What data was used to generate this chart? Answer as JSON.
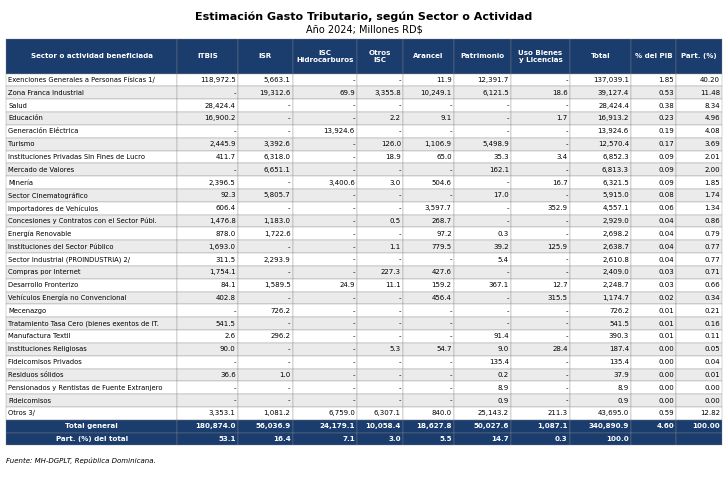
{
  "title": "Estimación Gasto Tributario, según Sector o Actividad",
  "subtitle": "Año 2024; Millones RD$",
  "headers": [
    "Sector o actividad beneficiada",
    "ITBIS",
    "ISR",
    "ISC\nHidrocarburos",
    "Otros\nISC",
    "Arancel",
    "Patrimonio",
    "Uso Bienes\ny Licencias",
    "Total",
    "% del PIB",
    "Part. (%)"
  ],
  "rows": [
    [
      "Exenciones Generales a Personas Físicas 1/",
      "118,972.5",
      "5,663.1",
      "-",
      "-",
      "11.9",
      "12,391.7",
      "-",
      "137,039.1",
      "1.85",
      "40.20"
    ],
    [
      "Zona Franca Industrial",
      "-",
      "19,312.6",
      "69.9",
      "3,355.8",
      "10,249.1",
      "6,121.5",
      "18.6",
      "39,127.4",
      "0.53",
      "11.48"
    ],
    [
      "Salud",
      "28,424.4",
      "-",
      "-",
      "-",
      "-",
      "-",
      "-",
      "28,424.4",
      "0.38",
      "8.34"
    ],
    [
      "Educación",
      "16,900.2",
      "-",
      "-",
      "2.2",
      "9.1",
      "-",
      "1.7",
      "16,913.2",
      "0.23",
      "4.96"
    ],
    [
      "Generación Eléctrica",
      "-",
      "-",
      "13,924.6",
      "-",
      "-",
      "-",
      "-",
      "13,924.6",
      "0.19",
      "4.08"
    ],
    [
      "Turismo",
      "2,445.9",
      "3,392.6",
      "-",
      "126.0",
      "1,106.9",
      "5,498.9",
      "-",
      "12,570.4",
      "0.17",
      "3.69"
    ],
    [
      "Instituciones Privadas Sin Fines de Lucro",
      "411.7",
      "6,318.0",
      "-",
      "18.9",
      "65.0",
      "35.3",
      "3.4",
      "6,852.3",
      "0.09",
      "2.01"
    ],
    [
      "Mercado de Valores",
      "-",
      "6,651.1",
      "-",
      "-",
      "-",
      "162.1",
      "-",
      "6,813.3",
      "0.09",
      "2.00"
    ],
    [
      "Minería",
      "2,396.5",
      "-",
      "3,400.6",
      "3.0",
      "504.6",
      "-",
      "16.7",
      "6,321.5",
      "0.09",
      "1.85"
    ],
    [
      "Sector Cinematográfico",
      "92.3",
      "5,805.7",
      "-",
      "-",
      "-",
      "17.0",
      "-",
      "5,915.0",
      "0.08",
      "1.74"
    ],
    [
      "Importadores de Vehículos",
      "606.4",
      "-",
      "-",
      "-",
      "3,597.7",
      "-",
      "352.9",
      "4,557.1",
      "0.06",
      "1.34"
    ],
    [
      "Concesiones y Contratos con el Sector Públ.",
      "1,476.8",
      "1,183.0",
      "-",
      "0.5",
      "268.7",
      "-",
      "-",
      "2,929.0",
      "0.04",
      "0.86"
    ],
    [
      "Energía Renovable",
      "878.0",
      "1,722.6",
      "-",
      "-",
      "97.2",
      "0.3",
      "-",
      "2,698.2",
      "0.04",
      "0.79"
    ],
    [
      "Instituciones del Sector Público",
      "1,693.0",
      "-",
      "-",
      "1.1",
      "779.5",
      "39.2",
      "125.9",
      "2,638.7",
      "0.04",
      "0.77"
    ],
    [
      "Sector Industrial (PROINDUSTRIA) 2/",
      "311.5",
      "2,293.9",
      "-",
      "-",
      "-",
      "5.4",
      "-",
      "2,610.8",
      "0.04",
      "0.77"
    ],
    [
      "Compras por Internet",
      "1,754.1",
      "-",
      "-",
      "227.3",
      "427.6",
      "-",
      "-",
      "2,409.0",
      "0.03",
      "0.71"
    ],
    [
      "Desarrollo Fronterizo",
      "84.1",
      "1,589.5",
      "24.9",
      "11.1",
      "159.2",
      "367.1",
      "12.7",
      "2,248.7",
      "0.03",
      "0.66"
    ],
    [
      "Vehículos Energía no Convencional",
      "402.8",
      "-",
      "-",
      "-",
      "456.4",
      "-",
      "315.5",
      "1,174.7",
      "0.02",
      "0.34"
    ],
    [
      "Mecenazgo",
      "-",
      "726.2",
      "-",
      "-",
      "-",
      "-",
      "-",
      "726.2",
      "0.01",
      "0.21"
    ],
    [
      "Tratamiento Tasa Cero (bienes exentos de IT.",
      "541.5",
      "-",
      "-",
      "-",
      "-",
      "-",
      "-",
      "541.5",
      "0.01",
      "0.16"
    ],
    [
      "Manufactura Textil",
      "2.6",
      "296.2",
      "-",
      "-",
      "-",
      "91.4",
      "-",
      "390.3",
      "0.01",
      "0.11"
    ],
    [
      "Instituciones Religiosas",
      "90.0",
      "-",
      "-",
      "5.3",
      "54.7",
      "9.0",
      "28.4",
      "187.4",
      "0.00",
      "0.05"
    ],
    [
      "Fideicomisos Privados",
      "-",
      "-",
      "-",
      "-",
      "-",
      "135.4",
      "-",
      "135.4",
      "0.00",
      "0.04"
    ],
    [
      "Residuos sólidos",
      "36.6",
      "1.0",
      "-",
      "-",
      "-",
      "0.2",
      "-",
      "37.9",
      "0.00",
      "0.01"
    ],
    [
      "Pensionados y Rentistas de Fuente Extranjero",
      "-",
      "-",
      "-",
      "-",
      "-",
      "8.9",
      "-",
      "8.9",
      "0.00",
      "0.00"
    ],
    [
      "Fideicomisos",
      "-",
      "-",
      "-",
      "-",
      "-",
      "0.9",
      "-",
      "0.9",
      "0.00",
      "0.00"
    ],
    [
      "Otros 3/",
      "3,353.1",
      "1,081.2",
      "6,759.0",
      "6,307.1",
      "840.0",
      "25,143.2",
      "211.3",
      "43,695.0",
      "0.59",
      "12.82"
    ]
  ],
  "total_row": [
    "Total general",
    "180,874.0",
    "56,036.9",
    "24,179.1",
    "10,058.4",
    "18,627.8",
    "50,027.6",
    "1,087.1",
    "340,890.9",
    "4.60",
    "100.00"
  ],
  "part_row": [
    "Part. (%) del total",
    "53.1",
    "16.4",
    "7.1",
    "3.0",
    "5.5",
    "14.7",
    "0.3",
    "100.0",
    "",
    ""
  ],
  "footer": "Fuente: MH-DGPLT, República Dominicana.",
  "header_bg": "#1b3d6e",
  "header_fg": "#ffffff",
  "total_bg": "#1b3d6e",
  "total_fg": "#ffffff",
  "row_bg_odd": "#ffffff",
  "row_bg_even": "#ebebeb",
  "border_color": "#999999",
  "title_fontsize": 8.0,
  "subtitle_fontsize": 7.0,
  "header_fontsize": 5.1,
  "data_fontsize": 5.0,
  "footer_fontsize": 5.0
}
